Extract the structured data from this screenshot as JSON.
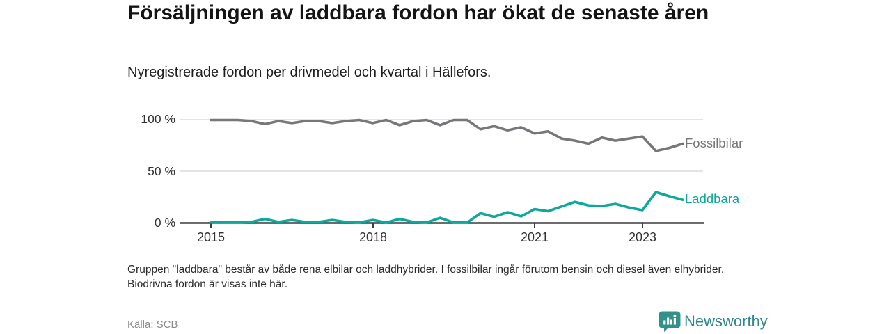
{
  "header": {
    "title": "Försäljningen av laddbara fordon har ökat de senaste åren",
    "subtitle": "Nyregistrerade fordon per drivmedel och kvartal i Hällefors."
  },
  "chart_data": {
    "type": "line",
    "x_unit": "quarter",
    "x_start": "2015-Q1",
    "x_end": "2023-Q4",
    "x_tick_labels": [
      "2015",
      "2018",
      "2021",
      "2023"
    ],
    "y_tick_labels": [
      "100 %",
      "50 %",
      "0 %"
    ],
    "ylim": [
      0,
      100
    ],
    "grid": "horizontal",
    "legend_position": "line-end-right",
    "series": [
      {
        "name": "Fossilbilar",
        "color": "#76777B",
        "values": [
          100,
          100,
          100,
          99,
          96,
          99,
          97,
          99,
          99,
          97,
          99,
          100,
          97,
          100,
          95,
          99,
          100,
          95,
          100,
          100,
          91,
          94,
          90,
          93,
          87,
          89,
          82,
          80,
          77,
          83,
          80,
          82,
          84,
          70,
          73,
          77
        ]
      },
      {
        "name": "Laddbara",
        "color": "#0DA79B",
        "values": [
          0.5,
          0.5,
          0.5,
          1,
          4,
          1,
          3,
          1,
          1,
          3,
          1,
          0.5,
          3,
          0.5,
          4,
          1,
          0.5,
          5,
          0.5,
          0.5,
          9.5,
          6,
          10.5,
          6.5,
          13.5,
          11.5,
          16,
          20.5,
          17,
          16.5,
          18.5,
          15,
          12.5,
          30,
          26,
          22.5
        ]
      }
    ]
  },
  "footer": {
    "note": "Gruppen \"laddbara\" består av både rena elbilar och laddhybrider. I fossilbilar ingår förutom bensin och diesel även elhybrider. Biodrivna fordon är visas inte här.",
    "source": "Källa: SCB",
    "brand": "Newsworthy"
  }
}
